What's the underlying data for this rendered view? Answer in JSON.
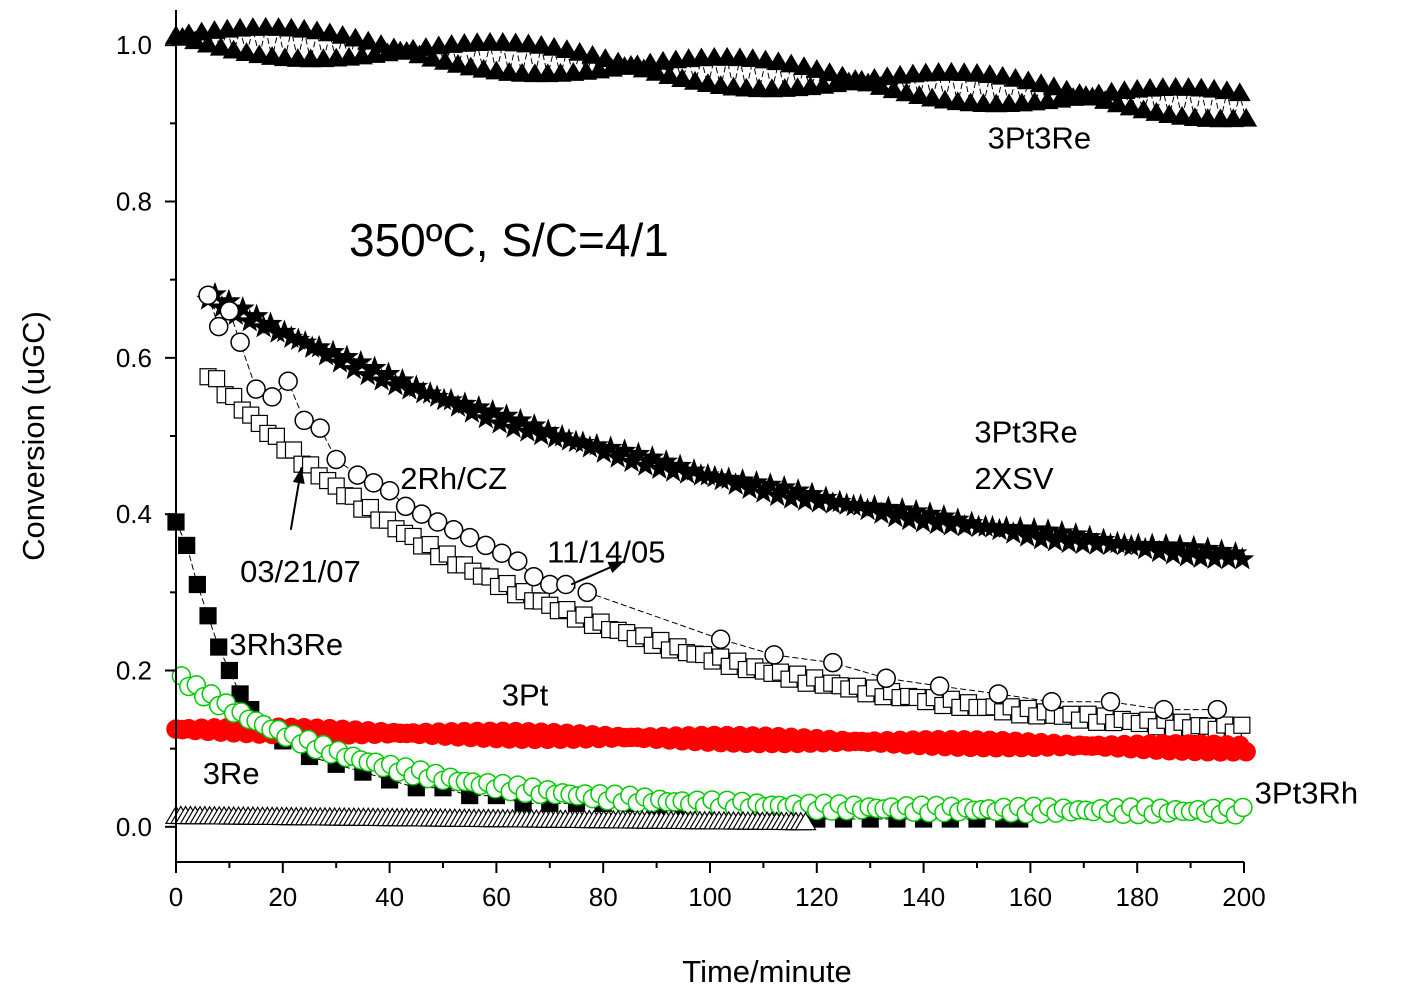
{
  "chart_data": {
    "type": "scatter",
    "title": "",
    "xlabel": "Time/minute",
    "ylabel": "Conversion (uGC)",
    "xlim": [
      0,
      200
    ],
    "ylim": [
      -0.045,
      1.045
    ],
    "x_ticks": [
      "0",
      "20",
      "40",
      "60",
      "80",
      "100",
      "120",
      "140",
      "160",
      "180",
      "200"
    ],
    "y_ticks": [
      "0.0",
      "0.2",
      "0.4",
      "0.6",
      "0.8",
      "1.0"
    ],
    "grid": false,
    "legend": "none",
    "condition_label": "350ºC, S/C=4/1",
    "annotations": [
      {
        "text": "3Pt3Re",
        "x": 152,
        "y": 0.868
      },
      {
        "text": "3Pt3Re",
        "x": 149.5,
        "y": 0.492
      },
      {
        "text": "2XSV",
        "x": 149.5,
        "y": 0.432
      },
      {
        "text": "2Rh/CZ",
        "x": 42,
        "y": 0.432
      },
      {
        "text": "11/14/05",
        "x": 69.5,
        "y": 0.338
      },
      {
        "text": "03/21/07",
        "x": 12,
        "y": 0.313
      },
      {
        "text": "3Rh3Re",
        "x": 10,
        "y": 0.22
      },
      {
        "text": "3Pt",
        "x": 61,
        "y": 0.155
      },
      {
        "text": "3Re",
        "x": 5,
        "y": 0.055
      },
      {
        "text": "3Pt3Rh",
        "x": 202,
        "y": 0.03
      }
    ],
    "arrows": [
      {
        "from": [
          74,
          0.31
        ],
        "to": [
          84,
          0.34
        ],
        "label": "11/14/05"
      },
      {
        "from": [
          21.5,
          0.38
        ],
        "to": [
          23.5,
          0.46
        ],
        "label": "03/21/07"
      }
    ],
    "series": [
      {
        "marker": "filled-triangle",
        "color": "#000000",
        "x_start": 0,
        "x_end": 200,
        "step": 1.2,
        "y_start": 1.01,
        "y_end": 0.92,
        "noise": 0.012
      },
      {
        "marker": "filled-star",
        "color": "#000000",
        "x_start": 6,
        "x_end": 200,
        "step": 1.3,
        "y_start": 0.68,
        "y_end": 0.345,
        "decay": 0.009,
        "noise": 0.004
      },
      {
        "marker": "open-square",
        "color": "#000000",
        "x_start": 6,
        "x_end": 200,
        "step": 1.6,
        "y_start": 0.58,
        "y_end": 0.125,
        "decay": 0.015,
        "noise": 0.003
      },
      {
        "marker": "open-circle",
        "color": "#000000",
        "x": [
          6,
          8,
          10,
          12,
          15,
          18,
          21,
          24,
          27,
          30,
          34,
          37,
          40,
          43,
          46,
          49,
          52,
          55,
          58,
          61,
          64,
          67,
          70,
          73,
          77,
          102,
          112,
          123,
          133,
          143,
          154,
          164,
          175,
          185,
          195
        ],
        "y": [
          0.68,
          0.64,
          0.66,
          0.62,
          0.56,
          0.55,
          0.57,
          0.52,
          0.51,
          0.47,
          0.45,
          0.44,
          0.43,
          0.41,
          0.4,
          0.39,
          0.38,
          0.37,
          0.36,
          0.35,
          0.34,
          0.32,
          0.31,
          0.31,
          0.3,
          0.24,
          0.22,
          0.21,
          0.19,
          0.18,
          0.17,
          0.16,
          0.16,
          0.15,
          0.15
        ]
      },
      {
        "marker": "filled-square",
        "color": "#000000",
        "x": [
          0,
          2,
          4,
          6,
          8,
          10,
          12,
          14,
          16,
          18,
          20,
          25,
          30,
          35,
          40,
          45,
          50,
          55,
          60,
          65,
          70,
          75,
          80,
          85,
          90,
          95,
          100,
          105,
          110,
          115,
          120,
          125,
          130,
          135,
          140,
          145,
          150,
          155,
          158
        ],
        "y": [
          0.39,
          0.36,
          0.31,
          0.27,
          0.23,
          0.2,
          0.17,
          0.15,
          0.13,
          0.12,
          0.11,
          0.09,
          0.08,
          0.07,
          0.06,
          0.05,
          0.05,
          0.04,
          0.04,
          0.03,
          0.03,
          0.03,
          0.03,
          0.03,
          0.02,
          0.02,
          0.02,
          0.02,
          0.02,
          0.01,
          0.01,
          0.01,
          0.01,
          0.01,
          0.01,
          0.01,
          0.01,
          0.01,
          0.01
        ]
      },
      {
        "marker": "filled-circle",
        "color": "#ff0000",
        "x_start": 0,
        "x_end": 200,
        "step": 1.2,
        "y_start": 0.125,
        "y_end": 0.1,
        "noise": 0.003
      },
      {
        "marker": "open-circle",
        "color": "#00cc00",
        "x_start": 1,
        "x_end": 200,
        "step": 1.4,
        "y_start": 0.19,
        "y_end": 0.02,
        "decay": 0.028,
        "noise": 0.003
      },
      {
        "marker": "open-triangle",
        "color": "#000000",
        "x_start": 0,
        "x_end": 118,
        "step": 0.9,
        "y_start": 0.012,
        "y_end": 0.004,
        "noise": 0
      }
    ]
  }
}
